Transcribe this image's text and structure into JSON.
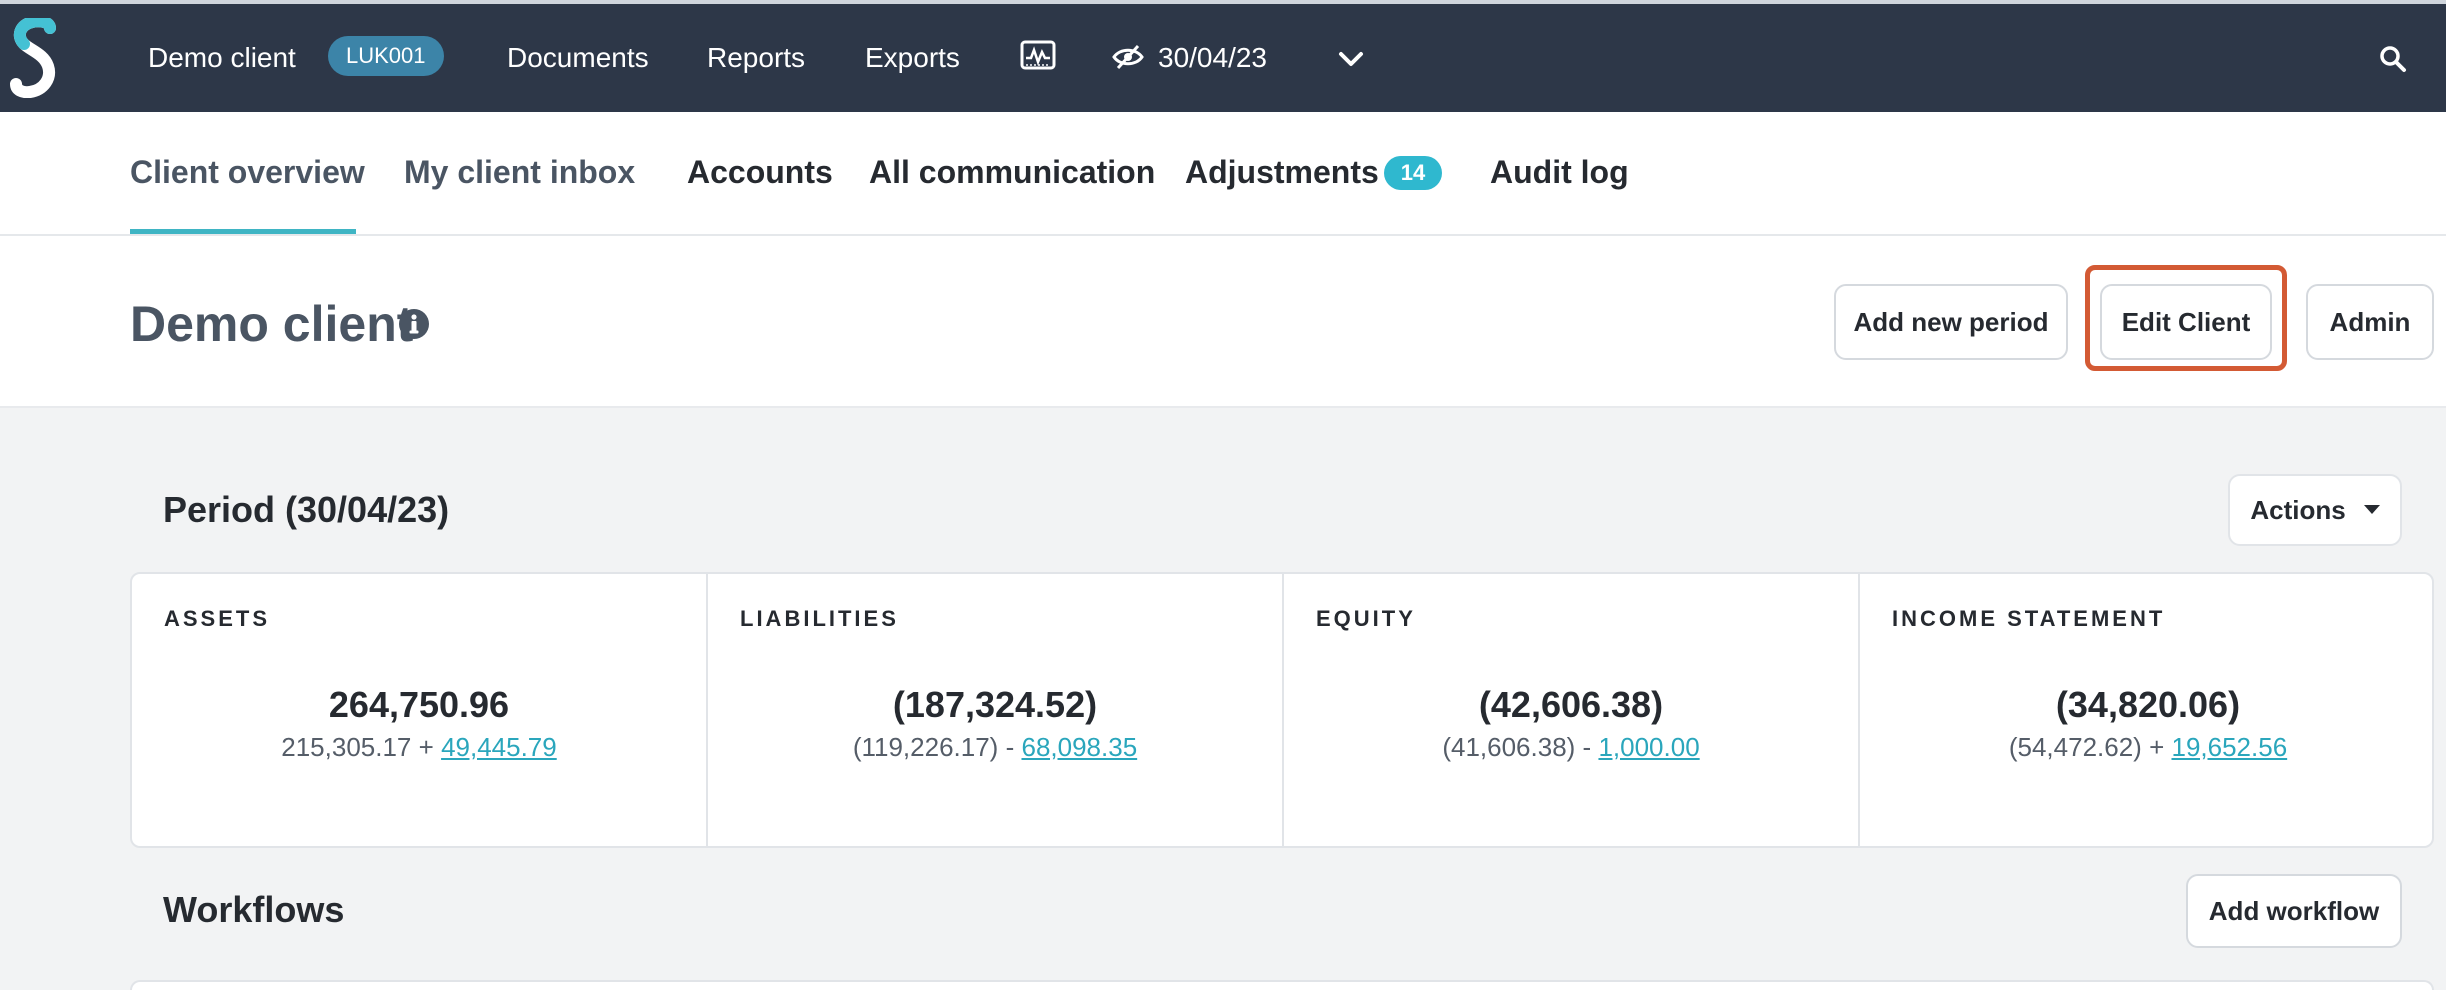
{
  "topnav": {
    "client_name": "Demo client",
    "client_code": "LUK001",
    "links": [
      "Documents",
      "Reports",
      "Exports"
    ],
    "period_date": "30/04/23",
    "icons": [
      "logo-s",
      "activity-monitor-icon",
      "eye-slash-icon",
      "chevron-down-icon",
      "search-icon"
    ]
  },
  "tabs": {
    "items": [
      {
        "label": "Client overview"
      },
      {
        "label": "My client inbox"
      },
      {
        "label": "Accounts"
      },
      {
        "label": "All communication"
      },
      {
        "label": "Adjustments"
      },
      {
        "label": "Audit log"
      }
    ],
    "adjustments_count": "14"
  },
  "header": {
    "title": "Demo client",
    "add_period_label": "Add new period",
    "edit_client_label": "Edit Client",
    "admin_label": "Admin"
  },
  "period": {
    "title": "Period (30/04/23)",
    "actions_label": "Actions",
    "cards": [
      {
        "label": "ASSETS",
        "total": "264,750.96",
        "base": "215,305.17",
        "op": "+",
        "delta": "49,445.79"
      },
      {
        "label": "LIABILITIES",
        "total": "(187,324.52)",
        "base": "(119,226.17)",
        "op": "-",
        "delta": "68,098.35"
      },
      {
        "label": "EQUITY",
        "total": "(42,606.38)",
        "base": "(41,606.38)",
        "op": "-",
        "delta": "1,000.00"
      },
      {
        "label": "INCOME STATEMENT",
        "total": "(34,820.06)",
        "base": "(54,472.62)",
        "op": "+",
        "delta": "19,652.56"
      }
    ]
  },
  "workflows": {
    "title": "Workflows",
    "add_label": "Add workflow"
  },
  "colors": {
    "nav_bg": "#2d3748",
    "accent": "#2fb8cf",
    "highlight": "#d35a34"
  }
}
